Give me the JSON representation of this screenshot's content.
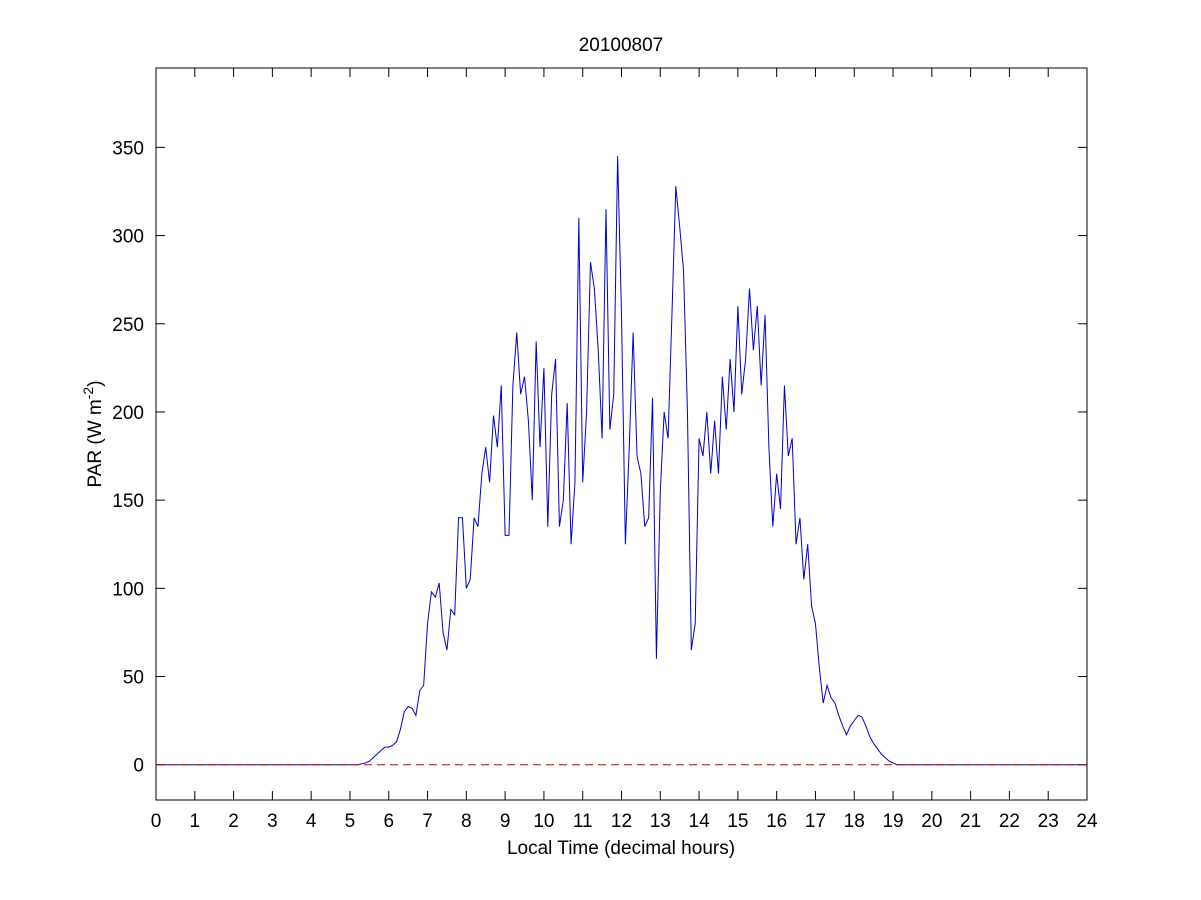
{
  "chart_data": {
    "type": "line",
    "title": "20100807",
    "xlabel": "Local Time (decimal hours)",
    "ylabel": {
      "text": "PAR (W m",
      "superscript": "-2",
      "suffix": ")"
    },
    "xlim": [
      0,
      24
    ],
    "xticks": [
      0,
      1,
      2,
      3,
      4,
      5,
      6,
      7,
      8,
      9,
      10,
      11,
      12,
      13,
      14,
      15,
      16,
      17,
      18,
      19,
      20,
      21,
      22,
      23,
      24
    ],
    "ylim": [
      -20,
      395
    ],
    "yticks": [
      0,
      50,
      100,
      150,
      200,
      250,
      300,
      350
    ],
    "grid": false,
    "series": [
      {
        "color": "#0000cc",
        "dash": false,
        "x": [
          0,
          5.0,
          5.1,
          5.2,
          5.3,
          5.4,
          5.5,
          5.6,
          5.7,
          5.8,
          5.9,
          6.0,
          6.1,
          6.2,
          6.3,
          6.4,
          6.5,
          6.6,
          6.7,
          6.8,
          6.9,
          7.0,
          7.1,
          7.2,
          7.3,
          7.4,
          7.5,
          7.6,
          7.7,
          7.8,
          7.9,
          8.0,
          8.1,
          8.2,
          8.3,
          8.4,
          8.5,
          8.6,
          8.7,
          8.8,
          8.9,
          9.0,
          9.1,
          9.2,
          9.3,
          9.4,
          9.5,
          9.6,
          9.7,
          9.8,
          9.9,
          10.0,
          10.1,
          10.2,
          10.3,
          10.4,
          10.5,
          10.6,
          10.7,
          10.8,
          10.9,
          11.0,
          11.1,
          11.2,
          11.3,
          11.4,
          11.5,
          11.6,
          11.7,
          11.8,
          11.9,
          12.0,
          12.1,
          12.2,
          12.3,
          12.4,
          12.5,
          12.6,
          12.7,
          12.8,
          12.9,
          13.0,
          13.1,
          13.2,
          13.3,
          13.4,
          13.5,
          13.6,
          13.7,
          13.8,
          13.9,
          14.0,
          14.1,
          14.2,
          14.3,
          14.4,
          14.5,
          14.6,
          14.7,
          14.8,
          14.9,
          15.0,
          15.1,
          15.2,
          15.3,
          15.4,
          15.5,
          15.6,
          15.7,
          15.8,
          15.9,
          16.0,
          16.1,
          16.2,
          16.3,
          16.4,
          16.5,
          16.6,
          16.7,
          16.8,
          16.9,
          17.0,
          17.1,
          17.2,
          17.3,
          17.4,
          17.5,
          17.6,
          17.7,
          17.8,
          17.9,
          18.0,
          18.1,
          18.2,
          18.3,
          18.4,
          18.5,
          18.6,
          18.7,
          18.8,
          18.9,
          19.0,
          19.1,
          24
        ],
        "values": [
          0,
          0,
          0,
          0,
          0.5,
          1,
          2,
          4,
          6,
          8,
          10,
          10,
          11,
          13,
          20,
          30,
          33,
          32,
          28,
          42,
          45,
          80,
          98,
          95,
          103,
          75,
          65,
          88,
          85,
          140,
          140,
          100,
          105,
          140,
          135,
          165,
          180,
          160,
          198,
          180,
          215,
          130,
          130,
          215,
          245,
          210,
          220,
          195,
          150,
          240,
          180,
          225,
          135,
          210,
          230,
          135,
          150,
          205,
          125,
          160,
          310,
          160,
          200,
          285,
          270,
          235,
          185,
          315,
          190,
          210,
          345,
          255,
          125,
          180,
          245,
          175,
          165,
          135,
          140,
          208,
          60,
          155,
          200,
          185,
          255,
          328,
          305,
          280,
          200,
          65,
          80,
          185,
          175,
          200,
          165,
          195,
          165,
          220,
          190,
          230,
          200,
          260,
          210,
          230,
          270,
          235,
          260,
          215,
          255,
          180,
          135,
          165,
          145,
          215,
          175,
          185,
          125,
          140,
          105,
          125,
          90,
          80,
          55,
          35,
          45,
          38,
          35,
          28,
          22,
          17,
          22,
          25,
          28,
          27,
          22,
          16,
          12,
          9,
          6,
          4,
          2,
          1,
          0,
          0
        ]
      },
      {
        "color": "#cc0000",
        "dash": true,
        "x": [
          0,
          24
        ],
        "values": [
          0,
          0
        ]
      }
    ]
  }
}
